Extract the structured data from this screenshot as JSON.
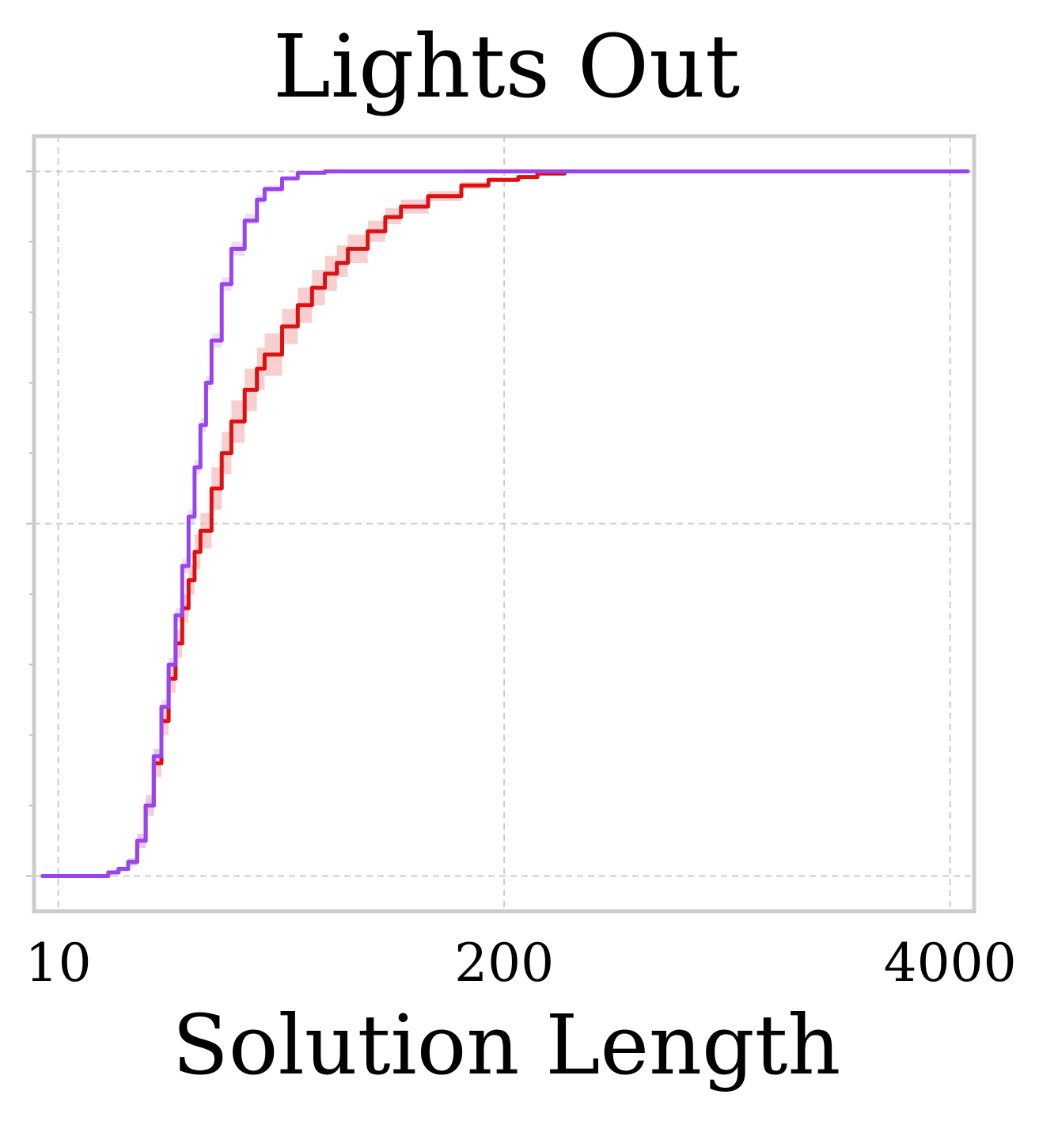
{
  "chart_data": {
    "type": "line",
    "title": "Lights Out",
    "xlabel": "Solution Length",
    "ylabel": "",
    "x_scale": "log",
    "xlim": [
      8.5,
      4700
    ],
    "ylim": [
      -0.05,
      1.05
    ],
    "x_ticks": [
      10,
      200,
      4000
    ],
    "x_tick_labels": [
      "10",
      "200",
      "4000"
    ],
    "y_major_ticks": [
      0,
      0.5,
      1
    ],
    "y_minor_ticks": [
      0.1,
      0.2,
      0.3,
      0.4,
      0.6,
      0.7,
      0.8,
      0.9
    ],
    "grid": true,
    "legend": "none",
    "series": [
      {
        "color": "#dd1111",
        "band_color": "#f2a8a8",
        "x": [
          9,
          13,
          14,
          15,
          16,
          17,
          18,
          19,
          20,
          21,
          22,
          23,
          24,
          25,
          26,
          28,
          30,
          32,
          35,
          38,
          40,
          45,
          50,
          55,
          60,
          65,
          70,
          80,
          90,
          100,
          120,
          150,
          180,
          220,
          250,
          300,
          350,
          500,
          800,
          1500,
          3000,
          4500
        ],
        "y": [
          0,
          0,
          0.005,
          0.01,
          0.02,
          0.05,
          0.1,
          0.16,
          0.22,
          0.28,
          0.33,
          0.38,
          0.42,
          0.46,
          0.49,
          0.55,
          0.6,
          0.645,
          0.69,
          0.72,
          0.74,
          0.78,
          0.81,
          0.835,
          0.855,
          0.87,
          0.89,
          0.915,
          0.935,
          0.95,
          0.965,
          0.98,
          0.988,
          0.992,
          0.997,
          1,
          1,
          1,
          1,
          1,
          1,
          1
        ],
        "y_low": [
          0,
          0,
          0.003,
          0.008,
          0.015,
          0.04,
          0.085,
          0.14,
          0.2,
          0.26,
          0.31,
          0.36,
          0.4,
          0.435,
          0.465,
          0.52,
          0.57,
          0.615,
          0.66,
          0.69,
          0.71,
          0.755,
          0.785,
          0.81,
          0.83,
          0.85,
          0.87,
          0.9,
          0.925,
          0.94,
          0.958,
          0.975,
          0.985,
          0.99,
          0.996,
          1,
          1,
          1,
          1,
          1,
          1,
          1
        ],
        "y_high": [
          0,
          0,
          0.008,
          0.013,
          0.025,
          0.06,
          0.115,
          0.18,
          0.24,
          0.3,
          0.35,
          0.4,
          0.44,
          0.485,
          0.515,
          0.58,
          0.63,
          0.675,
          0.72,
          0.75,
          0.77,
          0.805,
          0.835,
          0.86,
          0.88,
          0.895,
          0.91,
          0.93,
          0.948,
          0.96,
          0.972,
          0.985,
          0.991,
          0.995,
          0.999,
          1,
          1,
          1,
          1,
          1,
          1,
          1
        ]
      },
      {
        "color": "#9944ee",
        "band_color": "#dcc2f7",
        "x": [
          9,
          13,
          14,
          15,
          16,
          17,
          18,
          19,
          20,
          21,
          22,
          23,
          24,
          25,
          26,
          27,
          28,
          30,
          32,
          35,
          38,
          40,
          45,
          50,
          60,
          80,
          200,
          1000,
          4500
        ],
        "y": [
          0,
          0,
          0.005,
          0.01,
          0.02,
          0.05,
          0.1,
          0.17,
          0.24,
          0.3,
          0.37,
          0.44,
          0.51,
          0.58,
          0.64,
          0.7,
          0.76,
          0.84,
          0.89,
          0.93,
          0.96,
          0.975,
          0.99,
          0.998,
          1,
          1,
          1,
          1,
          1
        ],
        "y_low": [
          0,
          0,
          0.003,
          0.008,
          0.015,
          0.04,
          0.09,
          0.16,
          0.23,
          0.29,
          0.36,
          0.43,
          0.5,
          0.57,
          0.63,
          0.69,
          0.75,
          0.83,
          0.88,
          0.925,
          0.955,
          0.97,
          0.988,
          0.997,
          1,
          1,
          1,
          1,
          1
        ],
        "y_high": [
          0,
          0,
          0.007,
          0.012,
          0.025,
          0.06,
          0.11,
          0.18,
          0.25,
          0.31,
          0.38,
          0.45,
          0.52,
          0.59,
          0.65,
          0.71,
          0.77,
          0.85,
          0.9,
          0.94,
          0.967,
          0.98,
          0.993,
          1,
          1,
          1,
          1,
          1,
          1
        ]
      }
    ]
  }
}
